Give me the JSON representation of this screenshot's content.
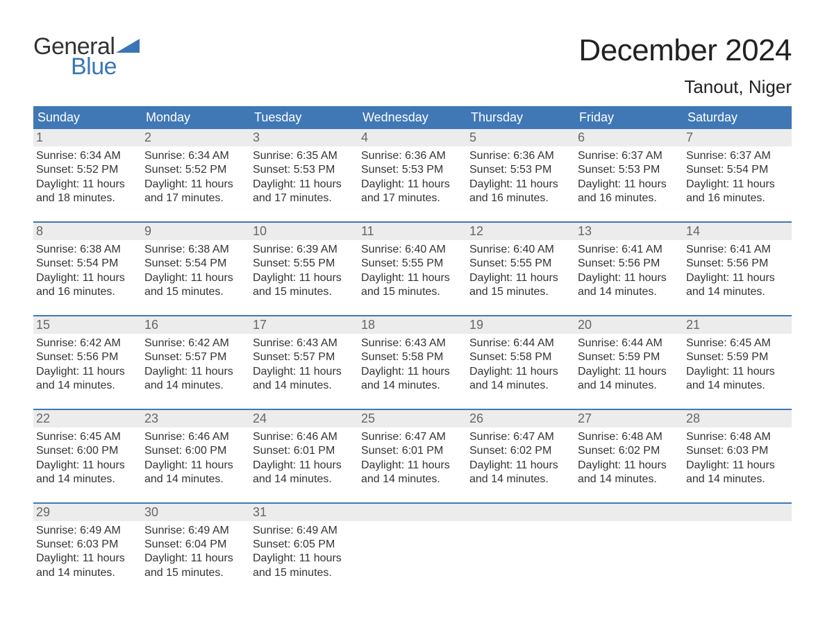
{
  "logo": {
    "part1": "General",
    "part2": "Blue",
    "accent_color": "#3a76b5"
  },
  "title": "December 2024",
  "location": "Tanout, Niger",
  "header_bg": "#3f78b5",
  "daynum_bg": "#ececec",
  "week_border": "#3f78b5",
  "day_headers": [
    "Sunday",
    "Monday",
    "Tuesday",
    "Wednesday",
    "Thursday",
    "Friday",
    "Saturday"
  ],
  "weeks": [
    [
      {
        "n": "1",
        "sunrise": "6:34 AM",
        "sunset": "5:52 PM",
        "dl1": "11 hours",
        "dl2": "and 18 minutes."
      },
      {
        "n": "2",
        "sunrise": "6:34 AM",
        "sunset": "5:52 PM",
        "dl1": "11 hours",
        "dl2": "and 17 minutes."
      },
      {
        "n": "3",
        "sunrise": "6:35 AM",
        "sunset": "5:53 PM",
        "dl1": "11 hours",
        "dl2": "and 17 minutes."
      },
      {
        "n": "4",
        "sunrise": "6:36 AM",
        "sunset": "5:53 PM",
        "dl1": "11 hours",
        "dl2": "and 17 minutes."
      },
      {
        "n": "5",
        "sunrise": "6:36 AM",
        "sunset": "5:53 PM",
        "dl1": "11 hours",
        "dl2": "and 16 minutes."
      },
      {
        "n": "6",
        "sunrise": "6:37 AM",
        "sunset": "5:53 PM",
        "dl1": "11 hours",
        "dl2": "and 16 minutes."
      },
      {
        "n": "7",
        "sunrise": "6:37 AM",
        "sunset": "5:54 PM",
        "dl1": "11 hours",
        "dl2": "and 16 minutes."
      }
    ],
    [
      {
        "n": "8",
        "sunrise": "6:38 AM",
        "sunset": "5:54 PM",
        "dl1": "11 hours",
        "dl2": "and 16 minutes."
      },
      {
        "n": "9",
        "sunrise": "6:38 AM",
        "sunset": "5:54 PM",
        "dl1": "11 hours",
        "dl2": "and 15 minutes."
      },
      {
        "n": "10",
        "sunrise": "6:39 AM",
        "sunset": "5:55 PM",
        "dl1": "11 hours",
        "dl2": "and 15 minutes."
      },
      {
        "n": "11",
        "sunrise": "6:40 AM",
        "sunset": "5:55 PM",
        "dl1": "11 hours",
        "dl2": "and 15 minutes."
      },
      {
        "n": "12",
        "sunrise": "6:40 AM",
        "sunset": "5:55 PM",
        "dl1": "11 hours",
        "dl2": "and 15 minutes."
      },
      {
        "n": "13",
        "sunrise": "6:41 AM",
        "sunset": "5:56 PM",
        "dl1": "11 hours",
        "dl2": "and 14 minutes."
      },
      {
        "n": "14",
        "sunrise": "6:41 AM",
        "sunset": "5:56 PM",
        "dl1": "11 hours",
        "dl2": "and 14 minutes."
      }
    ],
    [
      {
        "n": "15",
        "sunrise": "6:42 AM",
        "sunset": "5:56 PM",
        "dl1": "11 hours",
        "dl2": "and 14 minutes."
      },
      {
        "n": "16",
        "sunrise": "6:42 AM",
        "sunset": "5:57 PM",
        "dl1": "11 hours",
        "dl2": "and 14 minutes."
      },
      {
        "n": "17",
        "sunrise": "6:43 AM",
        "sunset": "5:57 PM",
        "dl1": "11 hours",
        "dl2": "and 14 minutes."
      },
      {
        "n": "18",
        "sunrise": "6:43 AM",
        "sunset": "5:58 PM",
        "dl1": "11 hours",
        "dl2": "and 14 minutes."
      },
      {
        "n": "19",
        "sunrise": "6:44 AM",
        "sunset": "5:58 PM",
        "dl1": "11 hours",
        "dl2": "and 14 minutes."
      },
      {
        "n": "20",
        "sunrise": "6:44 AM",
        "sunset": "5:59 PM",
        "dl1": "11 hours",
        "dl2": "and 14 minutes."
      },
      {
        "n": "21",
        "sunrise": "6:45 AM",
        "sunset": "5:59 PM",
        "dl1": "11 hours",
        "dl2": "and 14 minutes."
      }
    ],
    [
      {
        "n": "22",
        "sunrise": "6:45 AM",
        "sunset": "6:00 PM",
        "dl1": "11 hours",
        "dl2": "and 14 minutes."
      },
      {
        "n": "23",
        "sunrise": "6:46 AM",
        "sunset": "6:00 PM",
        "dl1": "11 hours",
        "dl2": "and 14 minutes."
      },
      {
        "n": "24",
        "sunrise": "6:46 AM",
        "sunset": "6:01 PM",
        "dl1": "11 hours",
        "dl2": "and 14 minutes."
      },
      {
        "n": "25",
        "sunrise": "6:47 AM",
        "sunset": "6:01 PM",
        "dl1": "11 hours",
        "dl2": "and 14 minutes."
      },
      {
        "n": "26",
        "sunrise": "6:47 AM",
        "sunset": "6:02 PM",
        "dl1": "11 hours",
        "dl2": "and 14 minutes."
      },
      {
        "n": "27",
        "sunrise": "6:48 AM",
        "sunset": "6:02 PM",
        "dl1": "11 hours",
        "dl2": "and 14 minutes."
      },
      {
        "n": "28",
        "sunrise": "6:48 AM",
        "sunset": "6:03 PM",
        "dl1": "11 hours",
        "dl2": "and 14 minutes."
      }
    ],
    [
      {
        "n": "29",
        "sunrise": "6:49 AM",
        "sunset": "6:03 PM",
        "dl1": "11 hours",
        "dl2": "and 14 minutes."
      },
      {
        "n": "30",
        "sunrise": "6:49 AM",
        "sunset": "6:04 PM",
        "dl1": "11 hours",
        "dl2": "and 15 minutes."
      },
      {
        "n": "31",
        "sunrise": "6:49 AM",
        "sunset": "6:05 PM",
        "dl1": "11 hours",
        "dl2": "and 15 minutes."
      },
      {
        "empty": true
      },
      {
        "empty": true
      },
      {
        "empty": true
      },
      {
        "empty": true
      }
    ]
  ],
  "labels": {
    "sunrise": "Sunrise: ",
    "sunset": "Sunset: ",
    "daylight": "Daylight: "
  }
}
